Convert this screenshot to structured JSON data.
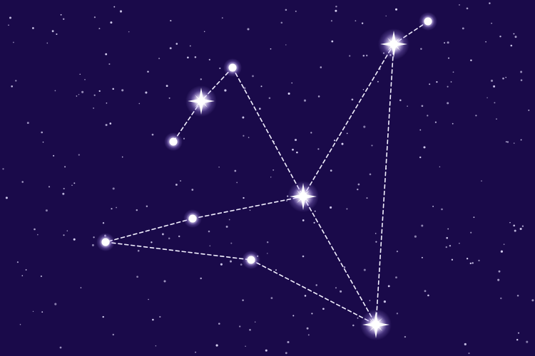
{
  "scene": {
    "subject": "constellation-star-map",
    "colors": {
      "sky": "#1a0a4a",
      "background_star": "#dcd6f7",
      "constellation_line": "#f2f0ff",
      "star_core": "#ffffff",
      "star_glow": "#b79cff"
    },
    "icons": [
      "bright-star-icon",
      "medium-star-icon",
      "small-star-icon"
    ]
  }
}
